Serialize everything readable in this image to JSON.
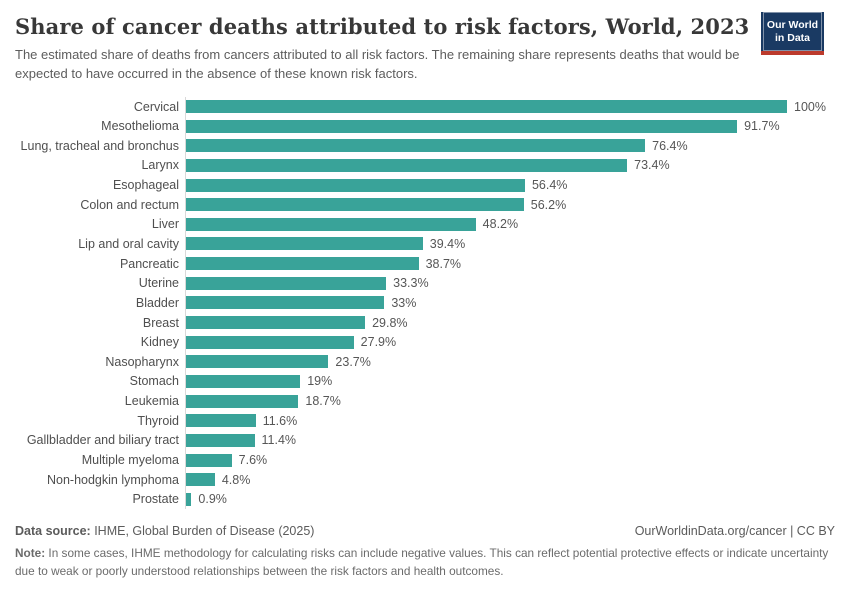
{
  "header": {
    "title": "Share of cancer deaths attributed to risk factors, World, 2023",
    "subtitle": "The estimated share of deaths from cancers attributed to all risk factors. The remaining share represents deaths that would be expected to have occurred in the absence of these known risk factors."
  },
  "logo": {
    "line1": "Our World",
    "line2": "in Data",
    "navy": "#1a3a63",
    "red": "#bc3a2c"
  },
  "chart_data": {
    "type": "bar",
    "orientation": "horizontal",
    "categories": [
      "Cervical",
      "Mesothelioma",
      "Lung, tracheal and bronchus",
      "Larynx",
      "Esophageal",
      "Colon and rectum",
      "Liver",
      "Lip and oral cavity",
      "Pancreatic",
      "Uterine",
      "Bladder",
      "Breast",
      "Kidney",
      "Nasopharynx",
      "Stomach",
      "Leukemia",
      "Thyroid",
      "Gallbladder and biliary tract",
      "Multiple myeloma",
      "Non-hodgkin lymphoma",
      "Prostate"
    ],
    "values": [
      100,
      91.7,
      76.4,
      73.4,
      56.4,
      56.2,
      48.2,
      39.4,
      38.7,
      33.3,
      33,
      29.8,
      27.9,
      23.7,
      19,
      18.7,
      11.6,
      11.4,
      7.6,
      4.8,
      0.9
    ],
    "value_labels": [
      "100%",
      "91.7%",
      "76.4%",
      "73.4%",
      "56.4%",
      "56.2%",
      "48.2%",
      "39.4%",
      "38.7%",
      "33.3%",
      "33%",
      "29.8%",
      "27.9%",
      "23.7%",
      "19%",
      "18.7%",
      "11.6%",
      "11.4%",
      "7.6%",
      "4.8%",
      "0.9%"
    ],
    "title": "Share of cancer deaths attributed to risk factors, World, 2023",
    "xlabel": "",
    "ylabel": "",
    "xlim": [
      0,
      100
    ],
    "grid": false,
    "legend": false,
    "bar_color": "#39a399",
    "axis_line_color": "#d9d9d9",
    "data_labels": "outside-end"
  },
  "footer": {
    "source_label": "Data source:",
    "source_text": " IHME, Global Burden of Disease (2025)",
    "link": "OurWorldinData.org/cancer | CC BY",
    "note_label": "Note:",
    "note_text": " In some cases, IHME methodology for calculating risks can include negative values. This can reflect potential protective effects or indicate uncertainty due to weak or poorly understood relationships between the risk factors and health outcomes."
  }
}
